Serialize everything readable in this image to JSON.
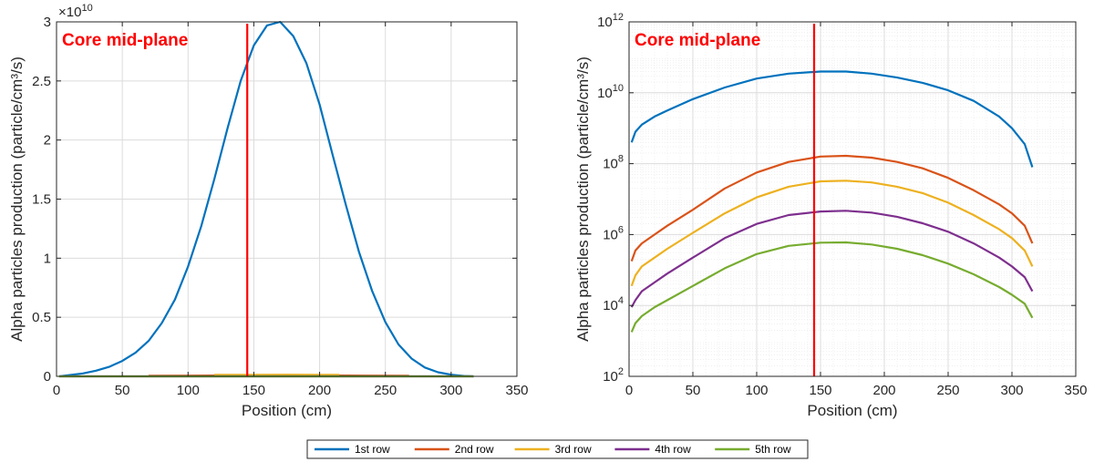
{
  "chart_data": [
    {
      "type": "line",
      "yscale": "linear",
      "ylabel": "Alpha particles production (particle/cm³/s)",
      "xlabel": "Position (cm)",
      "xlim": [
        0,
        350
      ],
      "ylim": [
        0,
        3
      ],
      "xticks": [
        0,
        50,
        100,
        150,
        200,
        250,
        300,
        350
      ],
      "yticks": [
        "0",
        "0.5",
        "1",
        "1.5",
        "2",
        "2.5",
        "3"
      ],
      "y_exponent": "×10",
      "y_exponent_power": "10",
      "y_multiplier": 10000000000.0,
      "grid": true,
      "annotation": {
        "text": "Core mid-plane",
        "x": 145
      },
      "series": [
        {
          "name": "1st row",
          "x": [
            2,
            10,
            20,
            30,
            40,
            50,
            60,
            70,
            80,
            90,
            100,
            110,
            120,
            130,
            140,
            150,
            160,
            170,
            180,
            190,
            200,
            210,
            220,
            230,
            240,
            250,
            260,
            270,
            280,
            290,
            300,
            310,
            317
          ],
          "y": [
            0.0,
            0.011,
            0.025,
            0.048,
            0.08,
            0.13,
            0.2,
            0.3,
            0.45,
            0.65,
            0.93,
            1.27,
            1.67,
            2.1,
            2.5,
            2.8,
            2.97,
            3.0,
            2.88,
            2.65,
            2.3,
            1.87,
            1.45,
            1.05,
            0.72,
            0.46,
            0.27,
            0.15,
            0.075,
            0.035,
            0.014,
            0.003,
            0.0
          ]
        },
        {
          "name": "2nd row",
          "x": [
            70,
            100,
            140,
            170,
            200,
            235,
            268
          ],
          "y": [
            0.005,
            0.006,
            0.008,
            0.009,
            0.008,
            0.006,
            0.005
          ]
        },
        {
          "name": "3rd row",
          "x": [
            120,
            150,
            175,
            200,
            215
          ],
          "y": [
            0.012,
            0.013,
            0.014,
            0.013,
            0.012
          ]
        },
        {
          "name": "4th row",
          "x": [
            2,
            317
          ],
          "y": [
            0.0,
            0.0
          ]
        },
        {
          "name": "5th row",
          "x": [
            2,
            317
          ],
          "y": [
            0.0,
            0.0
          ]
        }
      ]
    },
    {
      "type": "line",
      "yscale": "log",
      "ylabel": "Alpha particles production (particle/cm³/s)",
      "xlabel": "Position (cm)",
      "xlim": [
        0,
        350
      ],
      "ylim_exp": [
        2,
        12
      ],
      "xticks": [
        0,
        50,
        100,
        150,
        200,
        250,
        300,
        350
      ],
      "yticks_exp": [
        "2",
        "4",
        "6",
        "8",
        "10",
        "12"
      ],
      "ytick_base": "10",
      "grid": true,
      "annotation": {
        "text": "Core mid-plane",
        "x": 145
      },
      "series": [
        {
          "name": "1st row",
          "x": [
            2,
            5,
            10,
            20,
            30,
            50,
            75,
            100,
            125,
            150,
            170,
            190,
            210,
            230,
            250,
            270,
            290,
            300,
            310,
            316
          ],
          "y_exp": [
            8.6,
            8.9,
            9.1,
            9.33,
            9.5,
            9.82,
            10.15,
            10.4,
            10.54,
            10.6,
            10.6,
            10.54,
            10.43,
            10.28,
            10.07,
            9.77,
            9.33,
            9.0,
            8.55,
            7.9
          ]
        },
        {
          "name": "2nd row",
          "x": [
            2,
            5,
            10,
            20,
            30,
            50,
            75,
            100,
            125,
            150,
            170,
            190,
            210,
            230,
            250,
            270,
            290,
            300,
            310,
            316
          ],
          "y_exp": [
            5.25,
            5.55,
            5.75,
            6.0,
            6.25,
            6.7,
            7.3,
            7.75,
            8.05,
            8.2,
            8.22,
            8.17,
            8.05,
            7.87,
            7.6,
            7.25,
            6.85,
            6.6,
            6.25,
            5.75
          ]
        },
        {
          "name": "3rd row",
          "x": [
            2,
            5,
            10,
            20,
            30,
            50,
            75,
            100,
            125,
            150,
            170,
            190,
            210,
            230,
            250,
            270,
            290,
            300,
            310,
            316
          ],
          "y_exp": [
            4.55,
            4.85,
            5.1,
            5.35,
            5.6,
            6.05,
            6.6,
            7.05,
            7.35,
            7.5,
            7.52,
            7.47,
            7.35,
            7.17,
            6.9,
            6.55,
            6.15,
            5.9,
            5.55,
            5.1
          ]
        },
        {
          "name": "4th row",
          "x": [
            2,
            5,
            10,
            20,
            30,
            50,
            75,
            100,
            125,
            150,
            170,
            190,
            210,
            230,
            250,
            270,
            290,
            300,
            310,
            316
          ],
          "y_exp": [
            3.95,
            4.15,
            4.4,
            4.65,
            4.9,
            5.35,
            5.9,
            6.3,
            6.55,
            6.65,
            6.67,
            6.62,
            6.5,
            6.32,
            6.08,
            5.75,
            5.35,
            5.1,
            4.8,
            4.4
          ]
        },
        {
          "name": "5th row",
          "x": [
            2,
            5,
            10,
            20,
            30,
            50,
            75,
            100,
            125,
            150,
            170,
            190,
            210,
            230,
            250,
            270,
            290,
            300,
            310,
            316
          ],
          "y_exp": [
            3.25,
            3.5,
            3.7,
            3.95,
            4.15,
            4.55,
            5.05,
            5.45,
            5.68,
            5.77,
            5.78,
            5.72,
            5.6,
            5.42,
            5.18,
            4.88,
            4.52,
            4.3,
            4.05,
            3.65
          ]
        }
      ]
    }
  ],
  "legend": {
    "items": [
      {
        "label": "1st row",
        "color": "#0072bd"
      },
      {
        "label": "2nd row",
        "color": "#d95319"
      },
      {
        "label": "3rd row",
        "color": "#edb120"
      },
      {
        "label": "4th row",
        "color": "#7e2f8e"
      },
      {
        "label": "5th row",
        "color": "#77ac30"
      }
    ]
  },
  "colors": {
    "annotation_line": "#ff0000",
    "series": [
      "#0072bd",
      "#d95319",
      "#edb120",
      "#7e2f8e",
      "#77ac30"
    ]
  }
}
